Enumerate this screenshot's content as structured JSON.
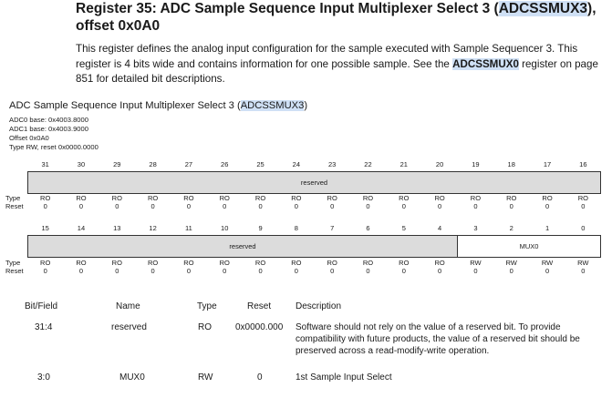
{
  "title": {
    "prefix": "Register 35: ADC Sample Sequence Input Multiplexer Select 3 (",
    "reg": "ADCSSMUX3",
    "suffix": "),",
    "line2": "offset 0x0A0"
  },
  "description": {
    "part1": "This register defines the analog input configuration for the sample executed with Sample Sequencer 3. This register is 4 bits wide and contains information for one possible sample. See the ",
    "link": "ADCSSMUX0",
    "part2": " register on page 851 for detailed bit descriptions."
  },
  "diagram": {
    "title_prefix": "ADC Sample Sequence Input Multiplexer Select 3 (",
    "title_reg": "ADCSSMUX3",
    "title_suffix": ")",
    "meta": [
      "ADC0 base: 0x4003.8000",
      "ADC1 base: 0x4003.9000",
      "Offset 0x0A0",
      "Type RW, reset 0x0000.0000"
    ],
    "upper_bits": [
      "31",
      "30",
      "29",
      "28",
      "27",
      "26",
      "25",
      "24",
      "23",
      "22",
      "21",
      "20",
      "19",
      "18",
      "17",
      "16"
    ],
    "lower_bits": [
      "15",
      "14",
      "13",
      "12",
      "11",
      "10",
      "9",
      "8",
      "7",
      "6",
      "5",
      "4",
      "3",
      "2",
      "1",
      "0"
    ],
    "type_label": "Type",
    "reset_label": "Reset",
    "upper_field": "reserved",
    "lower_reserved": "reserved",
    "lower_mux": "MUX0",
    "upper_types": [
      "RO",
      "RO",
      "RO",
      "RO",
      "RO",
      "RO",
      "RO",
      "RO",
      "RO",
      "RO",
      "RO",
      "RO",
      "RO",
      "RO",
      "RO",
      "RO"
    ],
    "upper_resets": [
      "0",
      "0",
      "0",
      "0",
      "0",
      "0",
      "0",
      "0",
      "0",
      "0",
      "0",
      "0",
      "0",
      "0",
      "0",
      "0"
    ],
    "lower_types": [
      "RO",
      "RO",
      "RO",
      "RO",
      "RO",
      "RO",
      "RO",
      "RO",
      "RO",
      "RO",
      "RO",
      "RO",
      "RW",
      "RW",
      "RW",
      "RW"
    ],
    "lower_resets": [
      "0",
      "0",
      "0",
      "0",
      "0",
      "0",
      "0",
      "0",
      "0",
      "0",
      "0",
      "0",
      "0",
      "0",
      "0",
      "0"
    ]
  },
  "fields_table": {
    "headers": [
      "Bit/Field",
      "Name",
      "Type",
      "Reset",
      "Description"
    ],
    "rows": [
      {
        "bits": "31:4",
        "name": "reserved",
        "type": "RO",
        "reset": "0x0000.000",
        "desc": [
          "Software should not rely on the value of a reserved bit. To provide",
          "compatibility with future products, the value of a reserved bit should be",
          "preserved across a read-modify-write operation."
        ]
      },
      {
        "bits": "3:0",
        "name": "MUX0",
        "type": "RW",
        "reset": "0",
        "desc": [
          "1st Sample Input Select"
        ]
      }
    ]
  }
}
